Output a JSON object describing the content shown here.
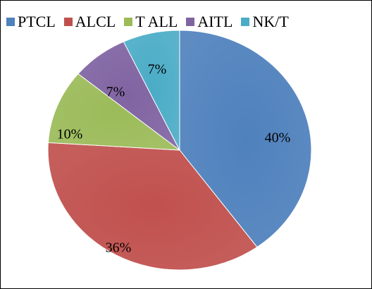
{
  "chart_data": {
    "type": "pie",
    "title": "",
    "legend": {
      "placement": "top"
    },
    "slices": [
      {
        "name": "PTCL",
        "value": 40,
        "label": "40%",
        "color": "#4F81BD"
      },
      {
        "name": "ALCL",
        "value": 36,
        "label": "36%",
        "color": "#C0504D"
      },
      {
        "name": "T ALL",
        "value": 10,
        "label": "10%",
        "color": "#9BBB59"
      },
      {
        "name": "AITL",
        "value": 7,
        "label": "7%",
        "color": "#8064A2"
      },
      {
        "name": "NK/T",
        "value": 7,
        "label": "7%",
        "color": "#4BACC6"
      }
    ]
  }
}
